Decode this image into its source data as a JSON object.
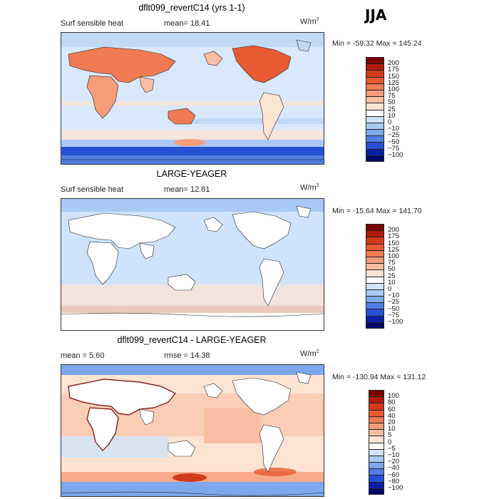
{
  "season": "JJA",
  "panels": [
    {
      "title": "dflt099_revertC14 (yrs 1-1)",
      "variable": "Surf sensible heat",
      "stat1": "mean=   18.41",
      "stat2": "",
      "units": "W/m",
      "units_sup": "2",
      "minmax": "Min = -59.32  Max = 145.24",
      "colorbar": {
        "labels": [
          "200",
          "175",
          "150",
          "125",
          "100",
          "75",
          "50",
          "25",
          "10",
          "0",
          "−10",
          "−25",
          "−50",
          "−75",
          "−100"
        ],
        "colors": [
          "#7a0000",
          "#b11a0c",
          "#d23a1c",
          "#e85a32",
          "#f07a52",
          "#f59c78",
          "#f9bea2",
          "#fde3d2",
          "#ffffff",
          "#cfe3fb",
          "#a9c9f5",
          "#7ea8ee",
          "#4f7fe3",
          "#2650d4",
          "#0b1ea8",
          "#02086a"
        ]
      }
    },
    {
      "title": "LARGE-YEAGER",
      "variable": "Surf sensible heat",
      "stat1": "mean=   12.81",
      "stat2": "",
      "units": "W/m",
      "units_sup": "2",
      "minmax": "Min = -15.64  Max = 141.70",
      "colorbar": {
        "labels": [
          "200",
          "175",
          "150",
          "125",
          "100",
          "75",
          "50",
          "25",
          "10",
          "0",
          "−10",
          "−25",
          "−50",
          "−75",
          "−100"
        ],
        "colors": [
          "#7a0000",
          "#b11a0c",
          "#d23a1c",
          "#e85a32",
          "#f07a52",
          "#f59c78",
          "#f9bea2",
          "#fde3d2",
          "#ffffff",
          "#cfe3fb",
          "#a9c9f5",
          "#7ea8ee",
          "#4f7fe3",
          "#2650d4",
          "#0b1ea8",
          "#02086a"
        ]
      }
    },
    {
      "title": "dflt099_revertC14 - LARGE-YEAGER",
      "variable": "mean =    5.60",
      "stat1": "rmse =   14.38",
      "stat2": "",
      "units": "W/m",
      "units_sup": "2",
      "minmax": "Min = -130.94  Max = 131.12",
      "colorbar": {
        "labels": [
          "100",
          "80",
          "60",
          "40",
          "20",
          "10",
          "5",
          "0",
          "−5",
          "−10",
          "−20",
          "−40",
          "−60",
          "−80",
          "−100"
        ],
        "colors": [
          "#7a0000",
          "#b11a0c",
          "#d23a1c",
          "#e85a32",
          "#f07a52",
          "#f59c78",
          "#f9bea2",
          "#fde3d2",
          "#ffffff",
          "#cfe3fb",
          "#a9c9f5",
          "#7ea8ee",
          "#4f7fe3",
          "#2650d4",
          "#0b1ea8",
          "#02086a"
        ]
      }
    }
  ]
}
